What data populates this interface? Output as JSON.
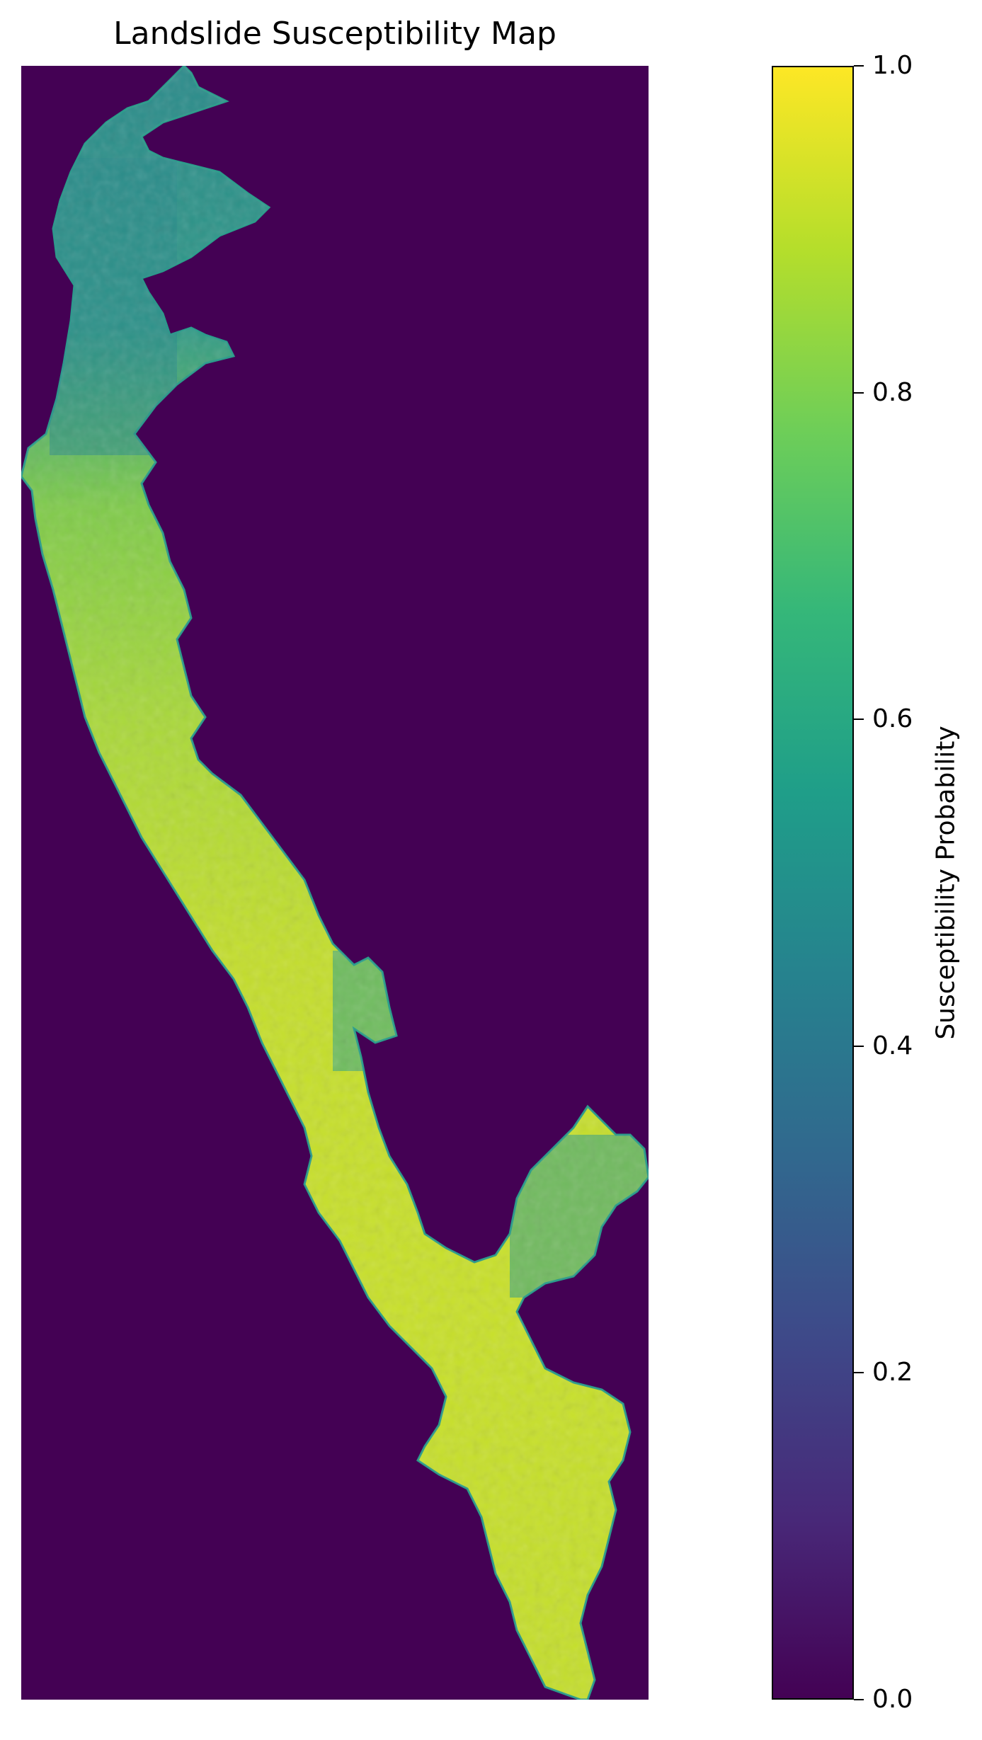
{
  "map": {
    "title": "Landslide Susceptibility Map",
    "background_color": "#440154",
    "colormap": "viridis",
    "colormap_stops": [
      "#440154",
      "#482878",
      "#3e4989",
      "#31688e",
      "#26828e",
      "#1f9e89",
      "#35b779",
      "#6ece58",
      "#b5de2b",
      "#fde725"
    ],
    "region_description_colors": {
      "north_segment": "#2a8a8a",
      "middle_segment": "#9ad43a",
      "south_segment": "#c9df28",
      "edges": "#2a9a8a"
    }
  },
  "colorbar": {
    "label": "Susceptibility Probability",
    "vmin": 0.0,
    "vmax": 1.0,
    "ticks": [
      {
        "value": 1.0,
        "label": "1.0"
      },
      {
        "value": 0.8,
        "label": "0.8"
      },
      {
        "value": 0.6,
        "label": "0.6"
      },
      {
        "value": 0.4,
        "label": "0.4"
      },
      {
        "value": 0.2,
        "label": "0.2"
      },
      {
        "value": 0.0,
        "label": "0.0"
      }
    ]
  }
}
